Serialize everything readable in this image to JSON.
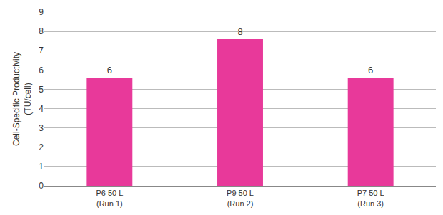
{
  "chart_data": {
    "type": "bar",
    "categories": [
      "P6 50 L\n(Run 1)",
      "P9 50 L\n(Run 2)",
      "P7 50 L\n(Run 3)"
    ],
    "values": [
      5.6,
      7.6,
      5.6
    ],
    "value_labels": [
      "6",
      "8",
      "6"
    ],
    "data_labels": true,
    "color": "#e8399a",
    "y_label": "Cell-Specific Productivity\n(TU/cell)",
    "ylim": [
      0,
      9
    ],
    "yticks": [
      0,
      1,
      2,
      3,
      4,
      5,
      6,
      7,
      8,
      9
    ],
    "grid": true
  }
}
